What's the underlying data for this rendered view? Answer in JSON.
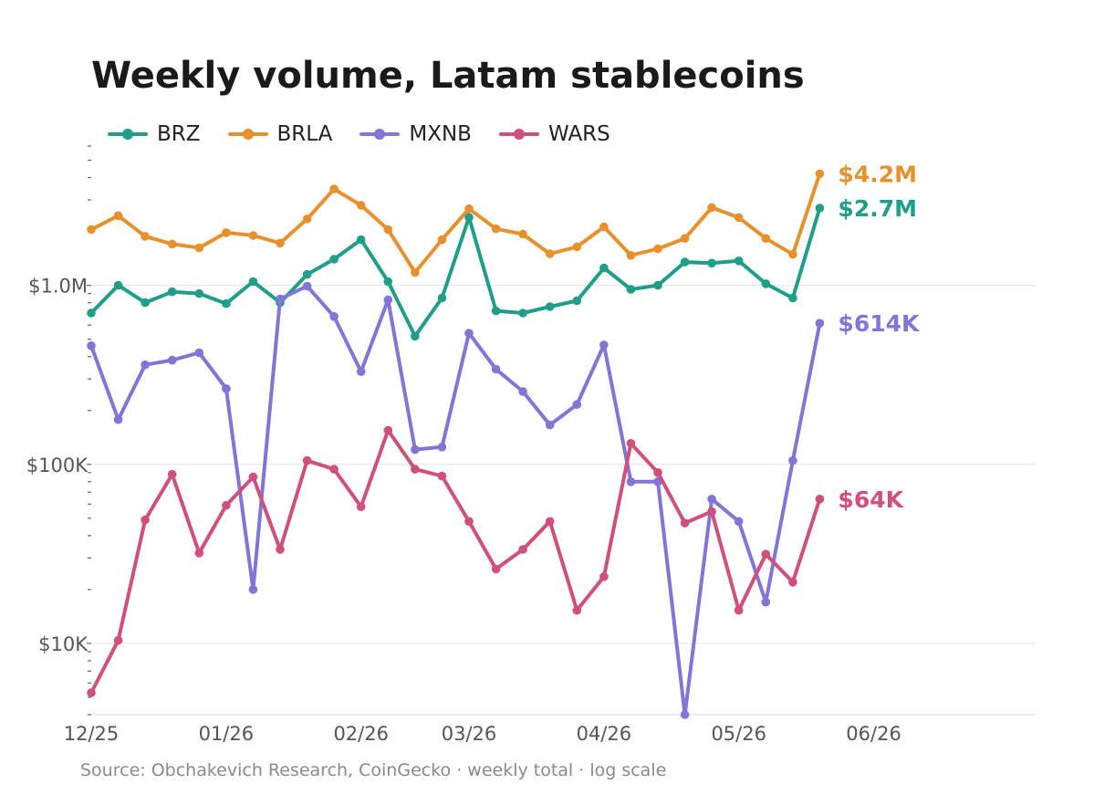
{
  "chart_data": {
    "type": "line",
    "title": "Weekly volume, Latam stablecoins",
    "source": "Source: Obchakevich Research, CoinGecko · weekly total · log scale",
    "y_scale": "log",
    "ylim": [
      4000,
      6000000
    ],
    "grid": "horizontal",
    "legend_placement": "top-left",
    "x": [
      "2025-12-25",
      "2026-01-01",
      "2026-01-08",
      "2026-01-15",
      "2026-01-22",
      "2026-01-29",
      "2026-02-05",
      "2026-02-12",
      "2026-02-19",
      "2026-02-26",
      "2026-03-05",
      "2026-03-12",
      "2026-03-19",
      "2026-03-26",
      "2026-04-02",
      "2026-04-09",
      "2026-04-16",
      "2026-04-23",
      "2026-04-30",
      "2026-05-07",
      "2026-05-14",
      "2026-05-21",
      "2026-05-28",
      "2026-06-04",
      "2026-06-11",
      "2026-06-18",
      "2026-06-25",
      "2026-07-02"
    ],
    "x_ticks": [
      {
        "date": "2025-12-25",
        "label": "12/25"
      },
      {
        "date": "2026-01-29",
        "label": "01/26"
      },
      {
        "date": "2026-03-05",
        "label": "02/26"
      },
      {
        "date": "2026-04-02",
        "label": "03/26"
      },
      {
        "date": "2026-05-07",
        "label": "04/26"
      },
      {
        "date": "2026-06-11",
        "label": "05/26"
      },
      {
        "date": "2026-07-16",
        "label": "06/26"
      }
    ],
    "x_range": [
      "2025-12-25",
      "2026-08-27"
    ],
    "y_ticks": [
      {
        "value": 10000,
        "label": "$10K"
      },
      {
        "value": 100000,
        "label": "$100K"
      },
      {
        "value": 1000000,
        "label": "$1.0M"
      }
    ],
    "series": [
      {
        "name": "BRZ",
        "color": "#1f9e89",
        "end_label": "$2.7M",
        "values": [
          700000,
          1000000,
          800000,
          920000,
          900000,
          790000,
          1050000,
          800000,
          1150000,
          1400000,
          1800000,
          1050000,
          520000,
          850000,
          2400000,
          720000,
          700000,
          760000,
          820000,
          1250000,
          950000,
          1000000,
          1350000,
          1330000,
          1370000,
          1020000,
          850000,
          2700000
        ]
      },
      {
        "name": "BRLA",
        "color": "#e8912c",
        "end_label": "$4.2M",
        "values": [
          2050000,
          2450000,
          1880000,
          1700000,
          1620000,
          1970000,
          1900000,
          1720000,
          2350000,
          3450000,
          2800000,
          2050000,
          1180000,
          1800000,
          2680000,
          2070000,
          1930000,
          1500000,
          1640000,
          2120000,
          1470000,
          1600000,
          1830000,
          2720000,
          2390000,
          1830000,
          1490000,
          4200000
        ]
      },
      {
        "name": "MXNB",
        "color": "#8275d8",
        "end_label": "$614K",
        "values": [
          460000,
          178000,
          360000,
          382000,
          420000,
          265000,
          20000,
          840000,
          990000,
          670000,
          330000,
          830000,
          121000,
          125000,
          540000,
          340000,
          255000,
          166000,
          216000,
          465000,
          80000,
          80000,
          4000,
          64000,
          48000,
          17000,
          105000,
          614000
        ]
      },
      {
        "name": "WARS",
        "color": "#d14f7c",
        "end_label": "$64K",
        "values": [
          5300,
          10400,
          49000,
          88000,
          32000,
          59000,
          85000,
          33500,
          105000,
          94000,
          58000,
          155000,
          94000,
          86000,
          48000,
          26000,
          33500,
          48000,
          15300,
          23600,
          131000,
          90000,
          47000,
          54500,
          15300,
          31500,
          22000,
          64000
        ]
      }
    ]
  }
}
